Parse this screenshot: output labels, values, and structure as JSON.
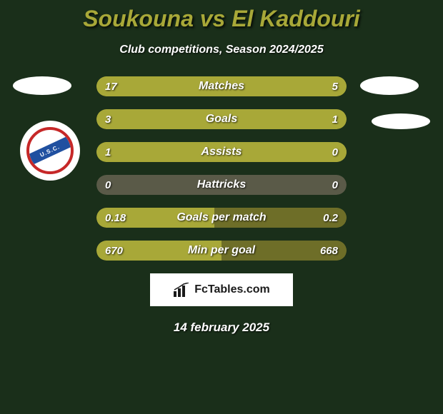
{
  "title": "Soukouna vs El Kaddouri",
  "subtitle": "Club competitions, Season 2024/2025",
  "club_badge_text": "U.S.C.",
  "colors": {
    "title": "#a8a838",
    "bar_primary": "#a8a838",
    "bar_secondary": "#6e6e28",
    "bar_dim": "#5a5a48",
    "background": "#1a2f1a",
    "badge_border": "#c62828",
    "badge_stripe": "#2050a0"
  },
  "stats": [
    {
      "label": "Matches",
      "left_value": "17",
      "right_value": "5",
      "left_pct": 77,
      "right_pct": 23,
      "left_color": "#a8a838",
      "right_color": "#a8a838",
      "bg_color": "#a8a838"
    },
    {
      "label": "Goals",
      "left_value": "3",
      "right_value": "1",
      "left_pct": 75,
      "right_pct": 25,
      "left_color": "#a8a838",
      "right_color": "#a8a838",
      "bg_color": "#6e6e28"
    },
    {
      "label": "Assists",
      "left_value": "1",
      "right_value": "0",
      "left_pct": 100,
      "right_pct": 0,
      "left_color": "#a8a838",
      "right_color": "#5a5a48",
      "bg_color": "#a8a838"
    },
    {
      "label": "Hattricks",
      "left_value": "0",
      "right_value": "0",
      "left_pct": 0,
      "right_pct": 0,
      "left_color": "#5a5a48",
      "right_color": "#5a5a48",
      "bg_color": "#5a5a48"
    },
    {
      "label": "Goals per match",
      "left_value": "0.18",
      "right_value": "0.2",
      "left_pct": 47,
      "right_pct": 53,
      "left_color": "#a8a838",
      "right_color": "#6e6e28",
      "bg_color": "#6e6e28"
    },
    {
      "label": "Min per goal",
      "left_value": "670",
      "right_value": "668",
      "left_pct": 50,
      "right_pct": 50,
      "left_color": "#a8a838",
      "right_color": "#6e6e28",
      "bg_color": "#6e6e28"
    }
  ],
  "footer_brand": "FcTables.com",
  "footer_date": "14 february 2025"
}
